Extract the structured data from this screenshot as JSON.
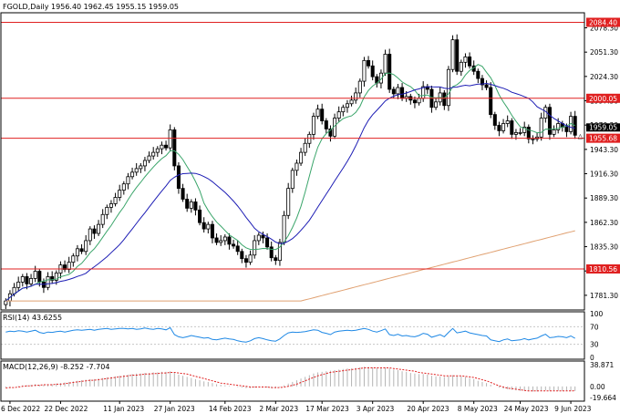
{
  "header": {
    "symbol_line": "FGOLD,Daily  1956.40 1962.45 1955.15 1959.05"
  },
  "colors": {
    "background": "#ffffff",
    "frame": "#000000",
    "candle": "#000000",
    "hline": "#e02020",
    "hline_label_bg": "#e02020",
    "ma_fast": "#3aa56a",
    "ma_mid": "#1c1cb4",
    "ma_slow": "#e0a070",
    "rsi": "#1e88e5",
    "macd_hist": "#b4b4b4",
    "macd_signal": "#e02020"
  },
  "chart_data": [
    {
      "type": "candlestick",
      "title": "FGOLD,Daily",
      "ohlc_label": "1956.40 1962.45 1955.15 1959.05",
      "ylim": [
        1765,
        2095
      ],
      "y_ticks": [
        2078.3,
        2051.3,
        2024.3,
        1997.3,
        1970.3,
        1943.3,
        1916.3,
        1889.3,
        1862.3,
        1835.3,
        1808.3,
        1781.3
      ],
      "y_tick_labels": [
        "2078.30",
        "2051.30",
        "2024.30",
        "1997.30",
        "1970.30",
        "1943.30",
        "1916.30",
        "1889.30",
        "1862.30",
        "1835.30",
        "1808.30",
        "1781.30"
      ],
      "x_labels": [
        "6 Dec 2022",
        "22 Dec 2022",
        "11 Jan 2023",
        "27 Jan 2023",
        "14 Feb 2023",
        "2 Mar 2023",
        "17 Mar 2023",
        "3 Apr 2023",
        "20 Apr 2023",
        "8 May 2023",
        "24 May 2023",
        "9 Jun 2023"
      ],
      "x_label_index": [
        1,
        13,
        27,
        39,
        52,
        64,
        75,
        87,
        99,
        111,
        122,
        134
      ],
      "horizontal_lines": [
        2084.4,
        2000.05,
        1955.68,
        1810.56
      ],
      "horizontal_line_labels": [
        "2084.40",
        "2000.05",
        "1955.68",
        "1810.56"
      ],
      "current_price_label": "1959.05",
      "close": [
        1775,
        1783,
        1790,
        1796,
        1802,
        1794,
        1800,
        1808,
        1796,
        1790,
        1802,
        1798,
        1806,
        1815,
        1810,
        1818,
        1825,
        1833,
        1830,
        1842,
        1855,
        1850,
        1860,
        1871,
        1879,
        1883,
        1890,
        1898,
        1905,
        1913,
        1918,
        1922,
        1925,
        1931,
        1936,
        1940,
        1944,
        1948,
        1945,
        1965,
        1925,
        1900,
        1888,
        1878,
        1885,
        1876,
        1862,
        1855,
        1860,
        1845,
        1840,
        1842,
        1846,
        1838,
        1836,
        1830,
        1822,
        1818,
        1826,
        1842,
        1848,
        1845,
        1835,
        1823,
        1820,
        1840,
        1870,
        1900,
        1920,
        1928,
        1940,
        1950,
        1960,
        1980,
        1988,
        1975,
        1966,
        1958,
        1978,
        1985,
        1990,
        1994,
        1998,
        2006,
        2019,
        2042,
        2036,
        2024,
        2017,
        2028,
        2049,
        2010,
        2005,
        2012,
        2000,
        2002,
        1998,
        1995,
        2000,
        2013,
        2010,
        1990,
        1996,
        2006,
        1992,
        2032,
        2065,
        2030,
        2040,
        2046,
        2036,
        2030,
        2022,
        2015,
        2012,
        1982,
        1970,
        1964,
        1972,
        1975,
        1960,
        1962,
        1962,
        1968,
        1955,
        1955,
        1957,
        1978,
        1990,
        1960,
        1965,
        1972,
        1968,
        1963,
        1980,
        1959.05
      ]
    },
    {
      "type": "line",
      "title": "RSI(14) 43.6255",
      "ylim": [
        0,
        100
      ],
      "y_ticks": [
        100,
        70,
        30,
        0
      ],
      "y_tick_labels": [
        "100",
        "70",
        "30",
        "0"
      ],
      "series": [
        {
          "name": "RSI(14)",
          "values": [
            58,
            60,
            59,
            61,
            60,
            58,
            60,
            62,
            57,
            55,
            58,
            57,
            59,
            60,
            58,
            60,
            62,
            63,
            62,
            63,
            64,
            62,
            64,
            65,
            66,
            64,
            65,
            66,
            66,
            65,
            66,
            64,
            65,
            67,
            65,
            64,
            66,
            65,
            63,
            68,
            52,
            47,
            45,
            47,
            50,
            48,
            46,
            44,
            45,
            41,
            40,
            42,
            44,
            42,
            41,
            38,
            36,
            35,
            38,
            43,
            45,
            43,
            40,
            38,
            37,
            42,
            50,
            56,
            58,
            57,
            58,
            59,
            61,
            63,
            62,
            57,
            55,
            52,
            58,
            60,
            61,
            62,
            61,
            62,
            64,
            66,
            64,
            60,
            58,
            61,
            65,
            52,
            50,
            53,
            49,
            50,
            48,
            47,
            50,
            55,
            53,
            46,
            49,
            52,
            47,
            57,
            66,
            56,
            58,
            60,
            56,
            54,
            52,
            50,
            49,
            40,
            38,
            36,
            40,
            42,
            38,
            39,
            40,
            43,
            40,
            42,
            44,
            49,
            53,
            45,
            46,
            48,
            47,
            45,
            49,
            43.6255
          ]
        }
      ]
    },
    {
      "type": "bar",
      "title": "MACD(12,26,9) -8.252 -7.704",
      "ylim": [
        -23,
        42
      ],
      "y_ticks": [
        38.871,
        0.0,
        -19.664
      ],
      "y_tick_labels": [
        "38.871",
        "0.00",
        "-19.664"
      ],
      "series": [
        {
          "name": "MACD",
          "values": [
            -2,
            -1,
            0,
            1,
            2,
            2,
            3,
            4,
            3,
            3,
            4,
            4,
            5,
            6,
            7,
            8,
            9,
            10,
            11,
            12,
            13,
            13,
            14,
            15,
            16,
            17,
            18,
            19,
            20,
            21,
            22,
            23,
            23,
            24,
            24,
            25,
            25,
            26,
            26,
            27,
            24,
            21,
            19,
            17,
            15,
            13,
            11,
            9,
            8,
            6,
            4,
            3,
            2,
            1,
            0,
            -1,
            -2,
            -3,
            -3,
            -2,
            -1,
            -1,
            -2,
            -3,
            -3,
            -1,
            2,
            5,
            8,
            11,
            14,
            17,
            20,
            23,
            25,
            26,
            27,
            28,
            29,
            30,
            31,
            32,
            32,
            33,
            34,
            35,
            35,
            34,
            33,
            33,
            34,
            32,
            30,
            29,
            27,
            26,
            24,
            23,
            22,
            22,
            21,
            19,
            18,
            18,
            17,
            18,
            20,
            19,
            18,
            17,
            15,
            13,
            10,
            8,
            6,
            3,
            0,
            -2,
            -4,
            -5,
            -6,
            -7,
            -8,
            -8,
            -9,
            -9,
            -9,
            -8,
            -7,
            -8,
            -8,
            -8,
            -8,
            -8,
            -8,
            -8.252
          ]
        },
        {
          "name": "Signal",
          "values": [
            -3,
            -2,
            -2,
            -1,
            0,
            1,
            1,
            2,
            2,
            3,
            3,
            3,
            4,
            4,
            5,
            6,
            7,
            8,
            9,
            10,
            11,
            11,
            12,
            13,
            14,
            15,
            16,
            17,
            18,
            19,
            20,
            20,
            21,
            22,
            22,
            23,
            23,
            24,
            24,
            25,
            25,
            24,
            23,
            22,
            20,
            18,
            16,
            14,
            12,
            10,
            8,
            6,
            5,
            4,
            3,
            2,
            1,
            0,
            -1,
            -1,
            -1,
            -1,
            -1,
            -2,
            -2,
            -2,
            -1,
            0,
            2,
            4,
            7,
            10,
            13,
            16,
            19,
            21,
            23,
            25,
            26,
            27,
            28,
            29,
            30,
            31,
            32,
            33,
            33,
            33,
            33,
            33,
            33,
            33,
            32,
            31,
            30,
            29,
            28,
            27,
            25,
            24,
            23,
            22,
            21,
            20,
            19,
            19,
            19,
            19,
            19,
            18,
            17,
            16,
            14,
            12,
            10,
            7,
            4,
            1,
            -1,
            -3,
            -4,
            -5,
            -6,
            -7,
            -8,
            -8,
            -8,
            -8,
            -8,
            -8,
            -8,
            -8,
            -8,
            -8,
            -8,
            -7.704
          ]
        }
      ]
    }
  ]
}
